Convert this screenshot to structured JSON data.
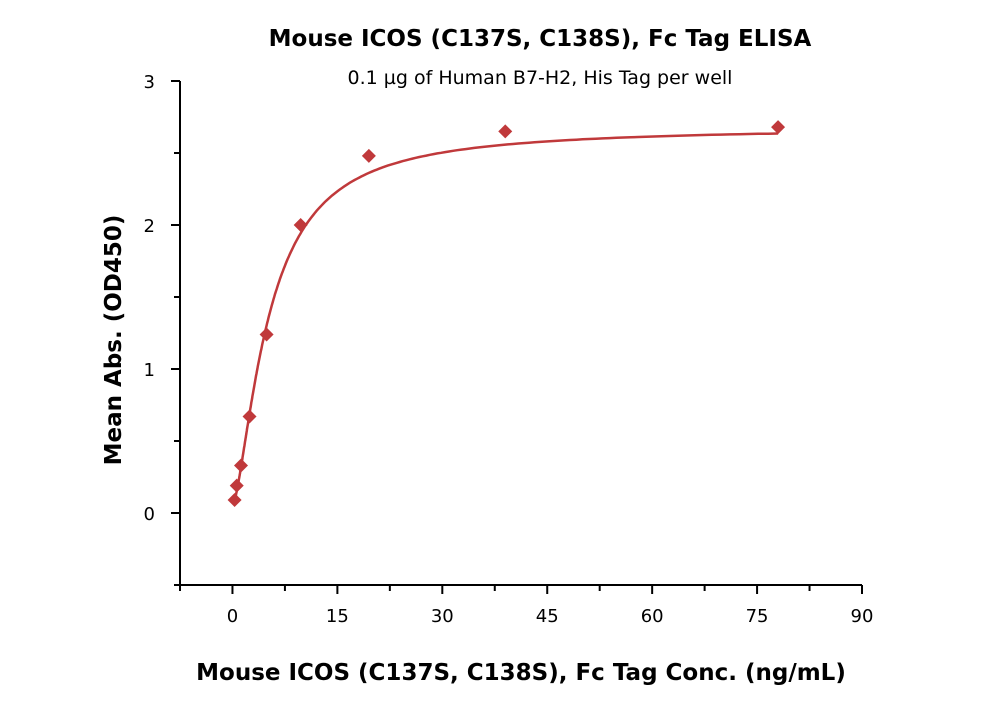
{
  "chart_data": {
    "type": "scatter",
    "title": "Mouse ICOS (C137S, C138S), Fc Tag ELISA",
    "subtitle": "0.1 µg of Human B7-H2, His Tag per well",
    "xlabel": "Mouse ICOS (C137S, C138S), Fc Tag Conc. (ng/mL)",
    "ylabel": "Mean Abs. (OD450)",
    "xlim": [
      -7.5,
      90
    ],
    "ylim": [
      -0.5,
      3
    ],
    "xticks": [
      "0",
      "15",
      "30",
      "45",
      "60",
      "75",
      "90"
    ],
    "yticks": [
      "0",
      "1",
      "2",
      "3"
    ],
    "grid": false,
    "fit_line": "4-parameter logistic curve",
    "marker": "diamond",
    "color": "#c0393b",
    "x": [
      0.305,
      0.61,
      1.22,
      2.44,
      4.88,
      9.75,
      19.5,
      39,
      78
    ],
    "y": [
      0.09,
      0.19,
      0.33,
      0.67,
      1.24,
      2.0,
      2.48,
      2.65,
      2.68
    ]
  }
}
